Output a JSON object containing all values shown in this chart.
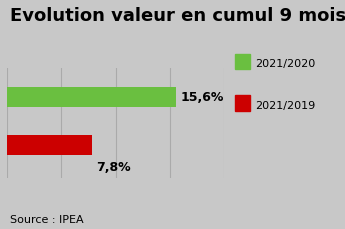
{
  "title": "Evolution valeur en cumul 9 mois",
  "values": [
    15.6,
    7.8
  ],
  "bar_colors": [
    "#6abf40",
    "#cc0000"
  ],
  "legend_colors": [
    "#6abf40",
    "#cc0000"
  ],
  "legend_labels": [
    "2021/2020",
    "2021/2019"
  ],
  "value_labels": [
    "15,6%",
    "7,8%"
  ],
  "source": "Source : IPEA",
  "xlim": [
    0,
    20
  ],
  "background_color": "#c8c8c8",
  "title_fontsize": 13,
  "label_fontsize": 9,
  "source_fontsize": 8,
  "legend_fontsize": 8,
  "grid_color": "#aaaaaa",
  "grid_linewidth": 0.8
}
